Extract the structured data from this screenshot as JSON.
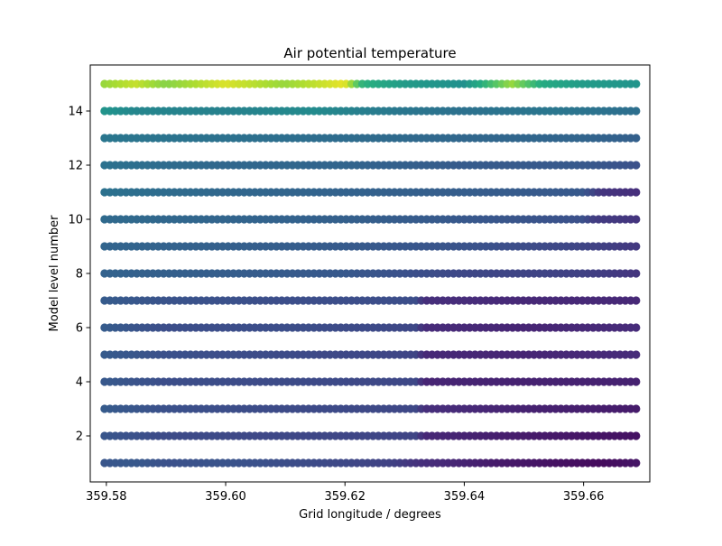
{
  "chart_data": {
    "type": "scatter",
    "title": "Air potential temperature",
    "xlabel": "Grid longitude / degrees",
    "ylabel": "Model level number",
    "xlim": [
      359.5773,
      359.6711
    ],
    "ylim": [
      0.3,
      15.7
    ],
    "xticks": [
      359.58,
      359.6,
      359.62,
      359.64,
      359.66
    ],
    "xtick_labels": [
      "359.58",
      "359.60",
      "359.62",
      "359.64",
      "359.66"
    ],
    "yticks": [
      2,
      4,
      6,
      8,
      10,
      12,
      14
    ],
    "ytick_labels": [
      "2",
      "4",
      "6",
      "8",
      "10",
      "12",
      "14"
    ],
    "x_start": 359.5797,
    "x_step": 0.0009,
    "points_per_level": 100,
    "levels": [
      1,
      2,
      3,
      4,
      5,
      6,
      7,
      8,
      9,
      10,
      11,
      12,
      13,
      14,
      15
    ],
    "colormap": "viridis",
    "grid": false,
    "legend": "none",
    "level_color_profiles": [
      {
        "level": 1,
        "stops": [
          [
            359.5797,
            0.27
          ],
          [
            359.585,
            0.28
          ],
          [
            359.59,
            0.25
          ],
          [
            359.6,
            0.26
          ],
          [
            359.62,
            0.22
          ],
          [
            359.628,
            0.2
          ],
          [
            359.633,
            0.14
          ],
          [
            359.645,
            0.08
          ],
          [
            359.655,
            0.05
          ],
          [
            359.663,
            0.03
          ],
          [
            359.669,
            0.06
          ]
        ]
      },
      {
        "level": 2,
        "stops": [
          [
            359.5797,
            0.27
          ],
          [
            359.59,
            0.23
          ],
          [
            359.61,
            0.22
          ],
          [
            359.6325,
            0.21
          ],
          [
            359.633,
            0.12
          ],
          [
            359.65,
            0.08
          ],
          [
            359.669,
            0.05
          ]
        ]
      },
      {
        "level": 3,
        "stops": [
          [
            359.5797,
            0.29
          ],
          [
            359.59,
            0.25
          ],
          [
            359.61,
            0.23
          ],
          [
            359.6325,
            0.22
          ],
          [
            359.633,
            0.14
          ],
          [
            359.65,
            0.1
          ],
          [
            359.669,
            0.08
          ]
        ]
      },
      {
        "level": 4,
        "stops": [
          [
            359.5797,
            0.28
          ],
          [
            359.59,
            0.24
          ],
          [
            359.61,
            0.23
          ],
          [
            359.6325,
            0.22
          ],
          [
            359.633,
            0.11
          ],
          [
            359.65,
            0.1
          ],
          [
            359.669,
            0.1
          ]
        ]
      },
      {
        "level": 5,
        "stops": [
          [
            359.5797,
            0.29
          ],
          [
            359.59,
            0.25
          ],
          [
            359.61,
            0.23
          ],
          [
            359.6325,
            0.21
          ],
          [
            359.633,
            0.12
          ],
          [
            359.65,
            0.11
          ],
          [
            359.669,
            0.13
          ]
        ]
      },
      {
        "level": 6,
        "stops": [
          [
            359.5797,
            0.29
          ],
          [
            359.59,
            0.24
          ],
          [
            359.61,
            0.24
          ],
          [
            359.6325,
            0.22
          ],
          [
            359.633,
            0.13
          ],
          [
            359.65,
            0.11
          ],
          [
            359.669,
            0.13
          ]
        ]
      },
      {
        "level": 7,
        "stops": [
          [
            359.5797,
            0.29
          ],
          [
            359.59,
            0.26
          ],
          [
            359.61,
            0.24
          ],
          [
            359.6325,
            0.24
          ],
          [
            359.633,
            0.14
          ],
          [
            359.65,
            0.12
          ],
          [
            359.669,
            0.12
          ]
        ]
      },
      {
        "level": 8,
        "stops": [
          [
            359.5797,
            0.32
          ],
          [
            359.6,
            0.3
          ],
          [
            359.62,
            0.28
          ],
          [
            359.64,
            0.22
          ],
          [
            359.66,
            0.2
          ],
          [
            359.669,
            0.16
          ]
        ]
      },
      {
        "level": 9,
        "stops": [
          [
            359.5797,
            0.33
          ],
          [
            359.6,
            0.31
          ],
          [
            359.62,
            0.29
          ],
          [
            359.64,
            0.26
          ],
          [
            359.66,
            0.21
          ],
          [
            359.669,
            0.17
          ]
        ]
      },
      {
        "level": 10,
        "stops": [
          [
            359.5797,
            0.35
          ],
          [
            359.6,
            0.33
          ],
          [
            359.62,
            0.31
          ],
          [
            359.64,
            0.28
          ],
          [
            359.66,
            0.25
          ],
          [
            359.662,
            0.18
          ],
          [
            359.669,
            0.16
          ]
        ]
      },
      {
        "level": 11,
        "stops": [
          [
            359.5797,
            0.38
          ],
          [
            359.6,
            0.34
          ],
          [
            359.62,
            0.32
          ],
          [
            359.64,
            0.3
          ],
          [
            359.66,
            0.28
          ],
          [
            359.663,
            0.16
          ],
          [
            359.669,
            0.14
          ]
        ]
      },
      {
        "level": 12,
        "stops": [
          [
            359.5797,
            0.38
          ],
          [
            359.6,
            0.34
          ],
          [
            359.62,
            0.33
          ],
          [
            359.64,
            0.29
          ],
          [
            359.66,
            0.28
          ],
          [
            359.669,
            0.25
          ]
        ]
      },
      {
        "level": 13,
        "stops": [
          [
            359.5797,
            0.4
          ],
          [
            359.6,
            0.38
          ],
          [
            359.62,
            0.36
          ],
          [
            359.64,
            0.34
          ],
          [
            359.66,
            0.33
          ],
          [
            359.669,
            0.31
          ]
        ]
      },
      {
        "level": 14,
        "stops": [
          [
            359.5797,
            0.52
          ],
          [
            359.585,
            0.46
          ],
          [
            359.6,
            0.44
          ],
          [
            359.615,
            0.48
          ],
          [
            359.62,
            0.45
          ],
          [
            359.63,
            0.4
          ],
          [
            359.64,
            0.38
          ],
          [
            359.655,
            0.4
          ],
          [
            359.669,
            0.37
          ]
        ]
      },
      {
        "level": 15,
        "stops": [
          [
            359.5797,
            0.85
          ],
          [
            359.585,
            0.92
          ],
          [
            359.59,
            0.82
          ],
          [
            359.6,
            0.95
          ],
          [
            359.61,
            0.85
          ],
          [
            359.62,
            0.97
          ],
          [
            359.623,
            0.65
          ],
          [
            359.63,
            0.55
          ],
          [
            359.64,
            0.5
          ],
          [
            359.648,
            0.85
          ],
          [
            359.653,
            0.62
          ],
          [
            359.66,
            0.55
          ],
          [
            359.669,
            0.52
          ]
        ]
      }
    ]
  }
}
